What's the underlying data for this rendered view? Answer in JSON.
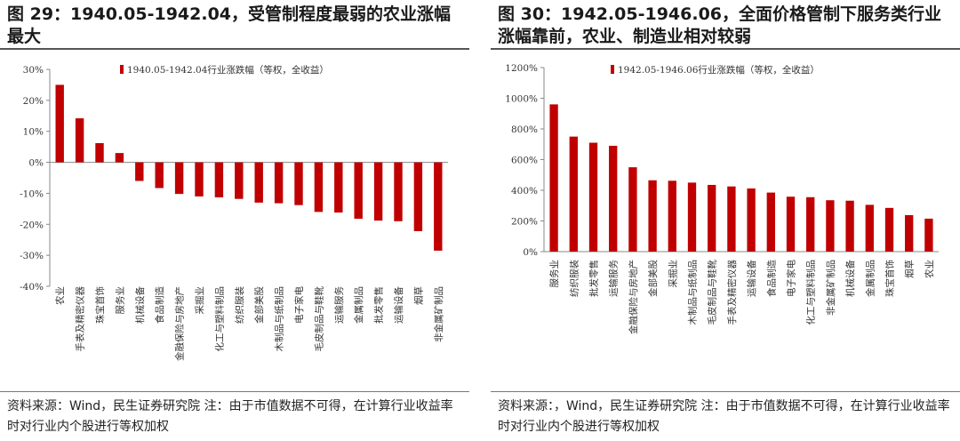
{
  "panels": [
    {
      "title": "图 29：1940.05-1942.04，受管制程度最弱的农业涨幅最大",
      "source": "资料来源：Wind，民生证券研究院 注：由于市值数据不可得，在计算行业收益率时对行业内个股进行等权加权",
      "chart_data": {
        "type": "bar",
        "legend": "1940.05-1942.04行业涨跌幅（等权，全收益）",
        "legend_position": "top",
        "ylim": [
          -40,
          30
        ],
        "yticks": [
          30,
          20,
          10,
          0,
          -10,
          -20,
          -30,
          -40
        ],
        "ytick_labels": [
          "30%",
          "20%",
          "10%",
          "0%",
          "-10%",
          "-20%",
          "-30%",
          "-40%"
        ],
        "unit": "%",
        "color": "#c00000",
        "grid": false,
        "categories": [
          "农业",
          "手表及精密仪器",
          "珠宝首饰",
          "服务业",
          "机械设备",
          "食品制造",
          "金融保险与房地产",
          "采掘业",
          "化工与塑料制品",
          "纺织服装",
          "金部美股",
          "木制品与纸制品",
          "电子家电",
          "毛皮制品与鞋靴",
          "运输服务",
          "金属制品",
          "批发零售",
          "运输设备",
          "烟草",
          "非金属矿制品"
        ],
        "values": [
          25,
          14.2,
          6.2,
          3,
          -6,
          -8.3,
          -10.2,
          -11,
          -11.3,
          -11.8,
          -13,
          -13.2,
          -13.8,
          -16,
          -16.2,
          -18.2,
          -18.8,
          -19,
          -22.2,
          -28.5
        ]
      }
    },
    {
      "title": "图 30：1942.05-1946.06，全面价格管制下服务类行业涨幅靠前，农业、制造业相对较弱",
      "source": "资料来源：，Wind，民生证券研究院 注：由于市值数据不可得，在计算行业收益率时对行业内个股进行等权加权",
      "chart_data": {
        "type": "bar",
        "legend": "1942.05-1946.06行业涨跌幅（等权，全收益）",
        "legend_position": "top",
        "ylim": [
          0,
          1200
        ],
        "yticks": [
          1200,
          1000,
          800,
          600,
          400,
          200,
          0
        ],
        "ytick_labels": [
          "1200%",
          "1000%",
          "800%",
          "600%",
          "400%",
          "200%",
          "0%"
        ],
        "unit": "%",
        "color": "#c00000",
        "grid": false,
        "categories": [
          "服务业",
          "纺织服装",
          "批发零售",
          "运输服务",
          "金融保险与房地产",
          "金部美股",
          "采掘业",
          "木制品与纸制品",
          "毛皮制品与鞋靴",
          "手表及精密仪器",
          "运输设备",
          "食品制造",
          "电子家电",
          "化工与塑料制品",
          "非金属矿制品",
          "机械设备",
          "金属制品",
          "珠宝首饰",
          "烟草",
          "农业"
        ],
        "values": [
          960,
          750,
          710,
          690,
          550,
          465,
          462,
          450,
          435,
          425,
          412,
          385,
          358,
          355,
          335,
          332,
          305,
          285,
          238,
          215
        ]
      }
    }
  ]
}
